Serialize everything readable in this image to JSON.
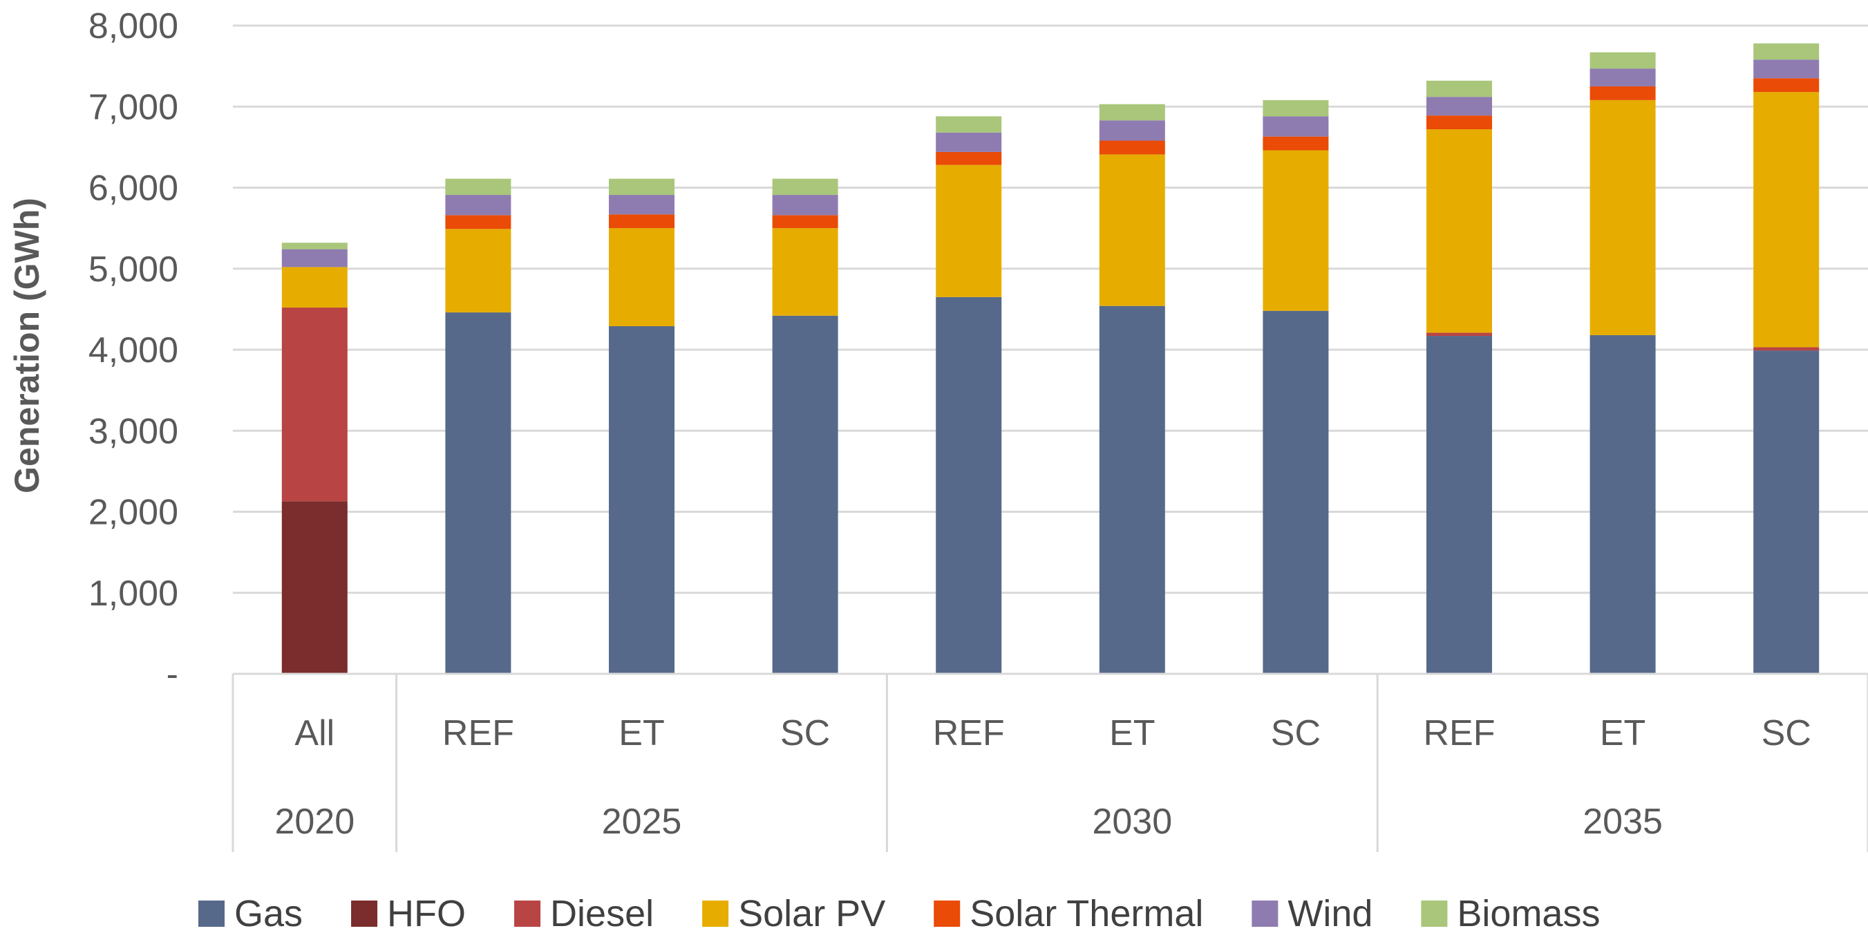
{
  "chart_data": {
    "type": "bar",
    "stacked": true,
    "title": "",
    "xlabel": "",
    "ylabel": "Generation (GWh)",
    "ylim": [
      0,
      8000
    ],
    "yticks": [
      0,
      1000,
      2000,
      3000,
      4000,
      5000,
      6000,
      7000,
      8000
    ],
    "ytick_labels": [
      "-",
      "1,000",
      "2,000",
      "3,000",
      "4,000",
      "5,000",
      "6,000",
      "7,000",
      "8,000"
    ],
    "grid": true,
    "legend_position": "bottom",
    "categories": [
      "All",
      "REF",
      "ET",
      "SC",
      "REF",
      "ET",
      "SC",
      "REF",
      "ET",
      "SC"
    ],
    "groups": [
      {
        "label": "2020",
        "start": 0,
        "count": 1
      },
      {
        "label": "2025",
        "start": 1,
        "count": 3
      },
      {
        "label": "2030",
        "start": 4,
        "count": 3
      },
      {
        "label": "2035",
        "start": 7,
        "count": 3
      }
    ],
    "series": [
      {
        "name": "Gas",
        "color": "#56698a",
        "values": [
          0,
          4460,
          4290,
          4420,
          4650,
          4540,
          4480,
          4170,
          4180,
          3990
        ]
      },
      {
        "name": "HFO",
        "color": "#7b2c2c",
        "values": [
          2130,
          0,
          0,
          0,
          0,
          0,
          0,
          0,
          0,
          0
        ]
      },
      {
        "name": "Diesel",
        "color": "#b84444",
        "values": [
          2390,
          0,
          0,
          0,
          0,
          0,
          0,
          40,
          0,
          40
        ]
      },
      {
        "name": "Solar PV",
        "color": "#e6ad00",
        "values": [
          500,
          1030,
          1210,
          1080,
          1630,
          1870,
          1980,
          2510,
          2900,
          3150
        ]
      },
      {
        "name": "Solar Thermal",
        "color": "#ea4b06",
        "values": [
          0,
          170,
          170,
          160,
          160,
          170,
          170,
          170,
          170,
          170
        ]
      },
      {
        "name": "Wind",
        "color": "#8e7cb1",
        "values": [
          220,
          250,
          240,
          250,
          240,
          250,
          250,
          230,
          220,
          230
        ]
      },
      {
        "name": "Biomass",
        "color": "#a9c67a",
        "values": [
          80,
          200,
          200,
          200,
          200,
          200,
          200,
          200,
          200,
          200
        ]
      }
    ]
  }
}
